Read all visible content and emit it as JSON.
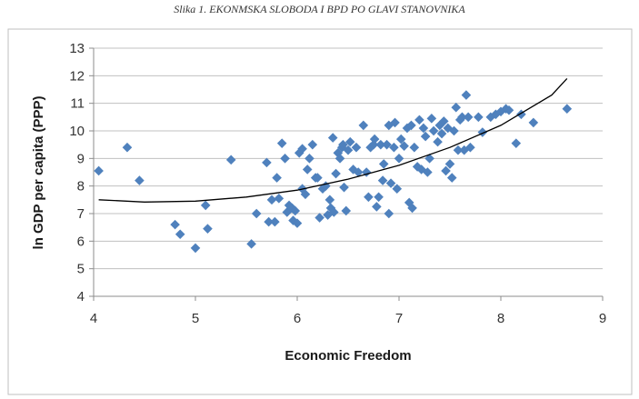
{
  "caption": "Slika 1. EKONMSKA SLOBODA I BPD PO GLAVI STANOVNIKA",
  "chart_data": {
    "type": "scatter",
    "title": "",
    "xlabel": "Economic Freedom",
    "ylabel": "ln GDP per capita (PPP)",
    "xlim": [
      4,
      9
    ],
    "ylim": [
      4,
      13
    ],
    "xticks": [
      4,
      5,
      6,
      7,
      8,
      9
    ],
    "yticks": [
      4,
      5,
      6,
      7,
      8,
      9,
      10,
      11,
      12,
      13
    ],
    "grid": "horizontal",
    "legend": "none",
    "colors": {
      "marker": "#4f81bd",
      "trend": "#000000",
      "grid": "#c0c0c0"
    },
    "trendline": {
      "type": "polynomial-2",
      "x": [
        4.05,
        4.5,
        5.0,
        5.5,
        6.0,
        6.5,
        7.0,
        7.5,
        8.0,
        8.5,
        8.65
      ],
      "y": [
        7.5,
        7.42,
        7.45,
        7.6,
        7.85,
        8.25,
        8.75,
        9.4,
        10.2,
        11.3,
        11.9
      ]
    },
    "points": [
      [
        4.05,
        8.55
      ],
      [
        4.33,
        9.4
      ],
      [
        4.45,
        8.2
      ],
      [
        4.8,
        6.6
      ],
      [
        4.85,
        6.25
      ],
      [
        5.0,
        5.75
      ],
      [
        5.1,
        7.3
      ],
      [
        5.12,
        6.45
      ],
      [
        5.35,
        8.95
      ],
      [
        5.55,
        5.9
      ],
      [
        5.6,
        7.0
      ],
      [
        5.7,
        8.85
      ],
      [
        5.72,
        6.7
      ],
      [
        5.75,
        7.5
      ],
      [
        5.78,
        6.7
      ],
      [
        5.8,
        8.3
      ],
      [
        5.82,
        7.55
      ],
      [
        5.85,
        9.55
      ],
      [
        5.88,
        9.0
      ],
      [
        5.9,
        7.05
      ],
      [
        5.92,
        7.3
      ],
      [
        5.95,
        7.2
      ],
      [
        5.96,
        6.75
      ],
      [
        5.98,
        7.1
      ],
      [
        6.0,
        6.65
      ],
      [
        6.02,
        9.2
      ],
      [
        6.05,
        9.35
      ],
      [
        6.05,
        7.9
      ],
      [
        6.08,
        7.7
      ],
      [
        6.1,
        8.6
      ],
      [
        6.12,
        9.0
      ],
      [
        6.15,
        9.5
      ],
      [
        6.18,
        8.3
      ],
      [
        6.2,
        8.3
      ],
      [
        6.22,
        6.85
      ],
      [
        6.25,
        7.9
      ],
      [
        6.28,
        8.0
      ],
      [
        6.3,
        6.95
      ],
      [
        6.32,
        7.5
      ],
      [
        6.33,
        7.2
      ],
      [
        6.35,
        9.75
      ],
      [
        6.36,
        7.05
      ],
      [
        6.38,
        8.45
      ],
      [
        6.4,
        9.2
      ],
      [
        6.42,
        9.0
      ],
      [
        6.44,
        9.4
      ],
      [
        6.45,
        9.5
      ],
      [
        6.46,
        7.95
      ],
      [
        6.48,
        7.1
      ],
      [
        6.5,
        9.3
      ],
      [
        6.52,
        9.6
      ],
      [
        6.55,
        8.6
      ],
      [
        6.58,
        9.4
      ],
      [
        6.6,
        8.5
      ],
      [
        6.65,
        10.2
      ],
      [
        6.68,
        8.5
      ],
      [
        6.7,
        7.6
      ],
      [
        6.72,
        9.4
      ],
      [
        6.75,
        9.5
      ],
      [
        6.76,
        9.7
      ],
      [
        6.78,
        7.25
      ],
      [
        6.8,
        7.6
      ],
      [
        6.82,
        9.5
      ],
      [
        6.84,
        8.2
      ],
      [
        6.85,
        8.8
      ],
      [
        6.88,
        9.5
      ],
      [
        6.9,
        7.0
      ],
      [
        6.9,
        10.2
      ],
      [
        6.92,
        8.1
      ],
      [
        6.95,
        9.4
      ],
      [
        6.96,
        10.3
      ],
      [
        6.98,
        7.9
      ],
      [
        7.0,
        9.0
      ],
      [
        7.02,
        9.7
      ],
      [
        7.05,
        9.45
      ],
      [
        7.08,
        10.1
      ],
      [
        7.1,
        7.4
      ],
      [
        7.12,
        10.2
      ],
      [
        7.13,
        7.2
      ],
      [
        7.15,
        9.4
      ],
      [
        7.18,
        8.7
      ],
      [
        7.2,
        10.4
      ],
      [
        7.22,
        8.6
      ],
      [
        7.24,
        10.1
      ],
      [
        7.26,
        9.8
      ],
      [
        7.28,
        8.5
      ],
      [
        7.3,
        9.0
      ],
      [
        7.32,
        10.45
      ],
      [
        7.34,
        10.0
      ],
      [
        7.38,
        9.6
      ],
      [
        7.4,
        10.2
      ],
      [
        7.42,
        9.9
      ],
      [
        7.44,
        10.35
      ],
      [
        7.46,
        8.55
      ],
      [
        7.48,
        10.1
      ],
      [
        7.5,
        8.8
      ],
      [
        7.52,
        8.3
      ],
      [
        7.54,
        10.0
      ],
      [
        7.56,
        10.85
      ],
      [
        7.58,
        9.3
      ],
      [
        7.6,
        10.4
      ],
      [
        7.62,
        10.5
      ],
      [
        7.64,
        9.3
      ],
      [
        7.66,
        11.3
      ],
      [
        7.68,
        10.5
      ],
      [
        7.7,
        9.4
      ],
      [
        7.78,
        10.5
      ],
      [
        7.82,
        9.95
      ],
      [
        7.9,
        10.5
      ],
      [
        7.95,
        10.6
      ],
      [
        8.0,
        10.7
      ],
      [
        8.05,
        10.8
      ],
      [
        8.08,
        10.75
      ],
      [
        8.15,
        9.55
      ],
      [
        8.2,
        10.6
      ],
      [
        8.32,
        10.3
      ],
      [
        8.65,
        10.8
      ]
    ]
  }
}
